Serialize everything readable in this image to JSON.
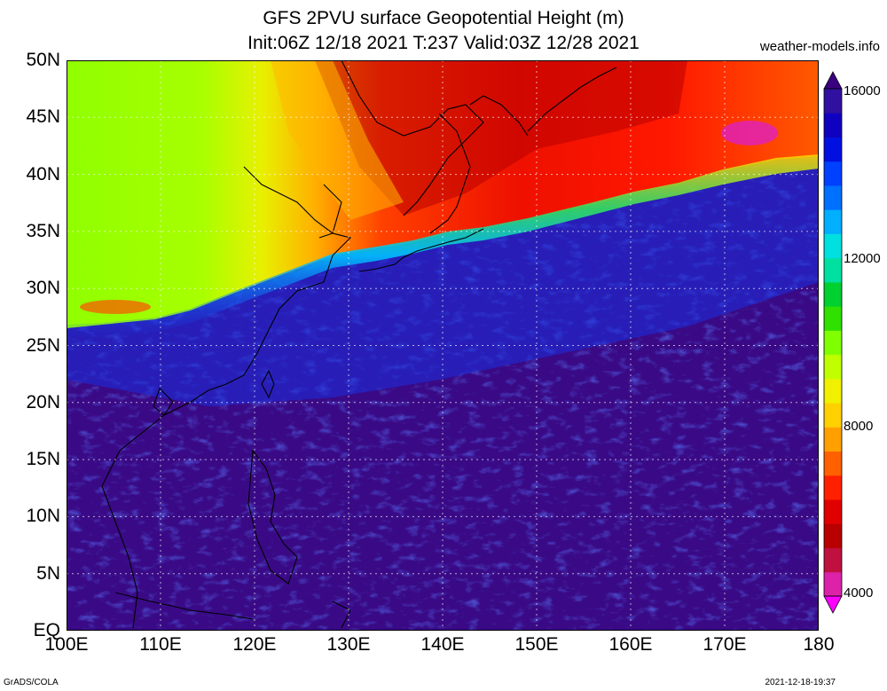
{
  "header": {
    "title_line1": "GFS 2PVU surface Geopotential Height (m)",
    "title_line2": "Init:06Z 12/18 2021 T:237 Valid:03Z 12/28 2021",
    "site": "weather-models.info"
  },
  "axes": {
    "lat_labels": [
      "50N",
      "45N",
      "40N",
      "35N",
      "30N",
      "25N",
      "20N",
      "15N",
      "10N",
      "5N",
      "EQ"
    ],
    "lon_labels": [
      "100E",
      "110E",
      "120E",
      "130E",
      "140E",
      "150E",
      "160E",
      "170E",
      "180"
    ],
    "lat_range": [
      0,
      50
    ],
    "lon_range": [
      100,
      180
    ]
  },
  "colorbar": {
    "labels": [
      "16000",
      "12000",
      "8000",
      "4000"
    ],
    "min": 4000,
    "max": 16000,
    "colors": [
      "#ff00ff",
      "#dd22aa",
      "#c01040",
      "#b80000",
      "#e00000",
      "#ff2000",
      "#ff6000",
      "#ffa000",
      "#ffd000",
      "#f0f000",
      "#c0ff00",
      "#80ff00",
      "#30e000",
      "#00d030",
      "#00e0a0",
      "#00e0e0",
      "#00b0ff",
      "#0070ff",
      "#0040ff",
      "#0010e0",
      "#1000c0",
      "#3010a0",
      "#3a0080"
    ]
  },
  "footer": {
    "left": "GrADS/COLA",
    "right": "2021-12-18-19:37"
  }
}
